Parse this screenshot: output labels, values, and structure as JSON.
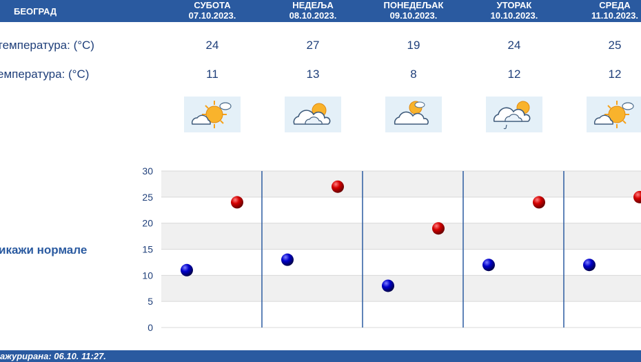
{
  "header": {
    "city": "БЕОГРАД"
  },
  "days": [
    {
      "name": "СУБОТА",
      "date": "07.10.2023.",
      "max": "24",
      "min": "11"
    },
    {
      "name": "НЕДЕЉА",
      "date": "08.10.2023.",
      "max": "27",
      "min": "13"
    },
    {
      "name": "ПОНЕДЕЉАК",
      "date": "09.10.2023.",
      "max": "19",
      "min": "8"
    },
    {
      "name": "УТОРАК",
      "date": "10.10.2023.",
      "max": "24",
      "min": "12"
    },
    {
      "name": "СРЕДА",
      "date": "11.10.2023.",
      "max": "25",
      "min": "12"
    }
  ],
  "rows": {
    "max_label": "температура: (°C)",
    "min_label": "емпература: (°C)",
    "icon_label": ":"
  },
  "icons": [
    "sun-behind-cloud-icon",
    "cloud-sun-icon",
    "cloud-sun-icon",
    "cloud-sun-drizzle-icon",
    "sun-behind-cloud-icon"
  ],
  "normals_label": "икажи нормале",
  "footer": {
    "updated": " ажурирана:  06.10.  11:27."
  },
  "colors": {
    "accent": "#2a5aa0",
    "max_marker": "#c00000",
    "min_marker": "#0000aa",
    "icon_bg": "#e4f0f8"
  },
  "chart_data": {
    "type": "scatter",
    "title": "",
    "xlabel": "",
    "ylabel": "",
    "ylim": [
      0,
      30
    ],
    "yticks": [
      0,
      5,
      10,
      15,
      20,
      25,
      30
    ],
    "categories": [
      "07.10.2023.",
      "08.10.2023.",
      "09.10.2023.",
      "10.10.2023.",
      "11.10.2023."
    ],
    "series": [
      {
        "values": [
          11,
          13,
          8,
          12,
          12
        ]
      },
      {
        "values": [
          24,
          27,
          19,
          24,
          25
        ]
      }
    ]
  }
}
